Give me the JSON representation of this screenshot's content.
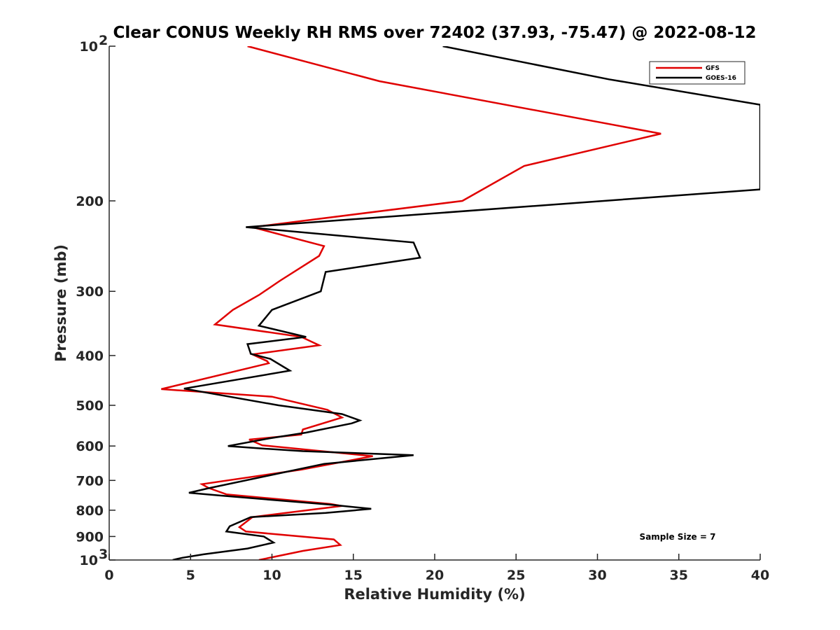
{
  "chart_data": {
    "type": "line",
    "title": "Clear CONUS Weekly RH RMS over 72402 (37.93, -75.47) @ 2022-08-12",
    "xlabel": "Relative Humidity (%)",
    "ylabel": "Pressure (mb)",
    "xlim": [
      0,
      40
    ],
    "ylim": [
      100,
      1000
    ],
    "yscale": "log",
    "y_reversed": true,
    "grid": false,
    "x_ticks": [
      "0",
      "5",
      "10",
      "15",
      "20",
      "25",
      "30",
      "35",
      "40"
    ],
    "y_ticks": [
      {
        "value": 100,
        "base": "10",
        "exp": "2"
      },
      {
        "value": 200,
        "label": "200"
      },
      {
        "value": 300,
        "label": "300"
      },
      {
        "value": 400,
        "label": "400"
      },
      {
        "value": 500,
        "label": "500"
      },
      {
        "value": 600,
        "label": "600"
      },
      {
        "value": 700,
        "label": "700"
      },
      {
        "value": 800,
        "label": "800"
      },
      {
        "value": 900,
        "label": "900"
      },
      {
        "value": 1000,
        "base": "10",
        "exp": "3"
      }
    ],
    "legend_position": "top-right",
    "annotation": "Sample Size = 7",
    "series": [
      {
        "name": "GFS",
        "color": "#e00000",
        "x": [
          8.5,
          16.6,
          33.9,
          25.5,
          21.7,
          8.8,
          13.2,
          12.9,
          10.5,
          9.2,
          7.6,
          6.5,
          11.8,
          12.9,
          8.8,
          9.7,
          9.8,
          3.2,
          10.0,
          13.4,
          14.3,
          11.9,
          11.8,
          8.6,
          9.4,
          16.2,
          11.8,
          5.7,
          6.1,
          7.2,
          13.6,
          14.3,
          8.8,
          8.0,
          8.4,
          13.8,
          14.2,
          11.9,
          9.2
        ],
        "y": [
          100,
          117,
          148,
          171,
          200,
          225,
          245,
          256,
          286,
          305,
          326,
          348,
          368,
          382,
          398,
          410,
          414,
          465,
          481,
          510,
          528,
          557,
          570,
          583,
          598,
          628,
          667,
          712,
          724,
          745,
          778,
          785,
          825,
          863,
          880,
          912,
          935,
          960,
          1000
        ]
      },
      {
        "name": "GOES-16",
        "color": "#000000",
        "x": [
          20.5,
          30.7,
          40.0,
          40.0,
          8.4,
          18.7,
          19.1,
          13.3,
          13.0,
          10.0,
          9.2,
          12.1,
          8.5,
          8.7,
          9.9,
          11.1,
          4.6,
          10.4,
          14.3,
          15.4,
          14.9,
          12.1,
          9.8,
          7.3,
          8.8,
          11.9,
          18.7,
          13.2,
          6.1,
          4.9,
          7.0,
          13.5,
          16.1,
          13.3,
          8.7,
          7.4,
          7.2,
          9.5,
          10.1,
          8.5,
          5.8,
          4.5,
          3.9
        ],
        "y": [
          100,
          116,
          130,
          190,
          225,
          241,
          258,
          275,
          300,
          326,
          350,
          368,
          380,
          397,
          406,
          428,
          464,
          500,
          520,
          535,
          542,
          565,
          580,
          600,
          605,
          614,
          625,
          650,
          725,
          740,
          750,
          780,
          795,
          810,
          825,
          860,
          880,
          900,
          925,
          950,
          975,
          990,
          1000
        ]
      }
    ]
  }
}
